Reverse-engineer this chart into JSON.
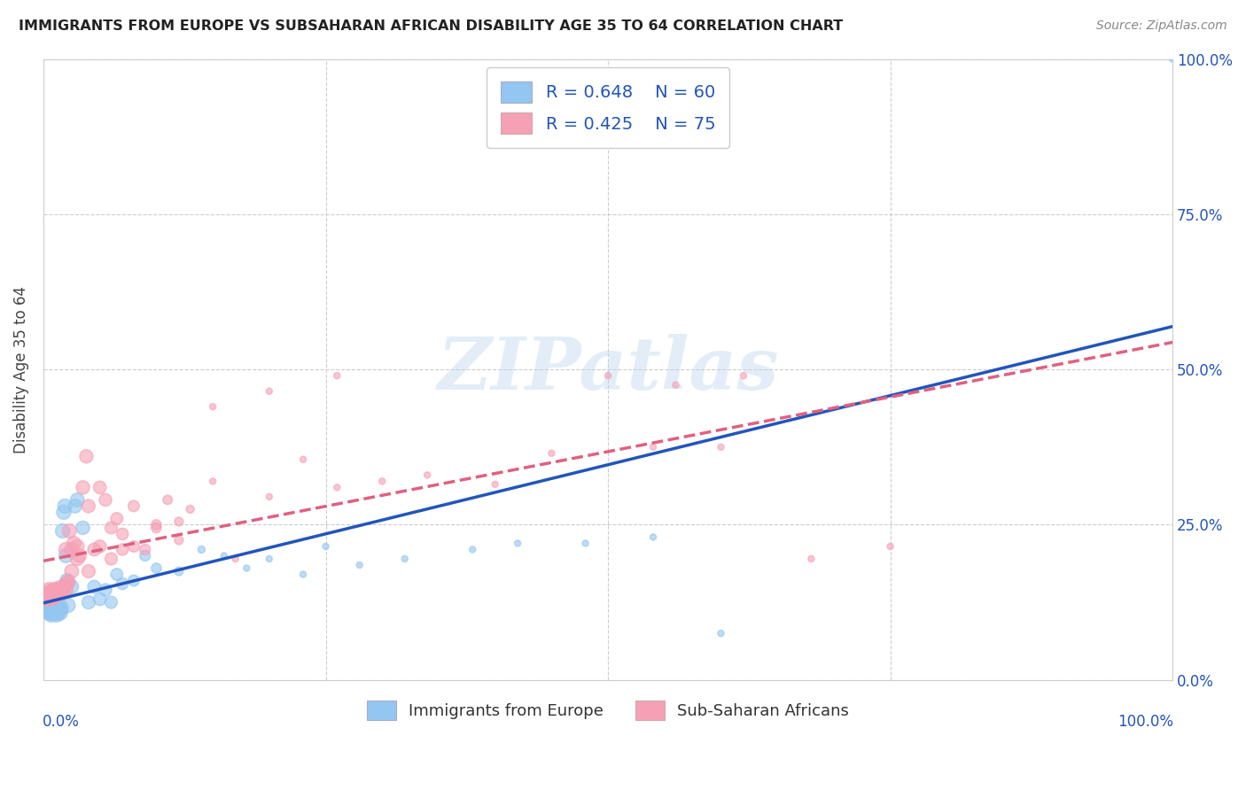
{
  "title": "IMMIGRANTS FROM EUROPE VS SUBSAHARAN AFRICAN DISABILITY AGE 35 TO 64 CORRELATION CHART",
  "source": "Source: ZipAtlas.com",
  "ylabel": "Disability Age 35 to 64",
  "xlim": [
    0,
    1
  ],
  "ylim": [
    0,
    1
  ],
  "ytick_values": [
    0,
    0.25,
    0.5,
    0.75,
    1.0
  ],
  "right_ytick_labels": [
    "0.0%",
    "25.0%",
    "50.0%",
    "75.0%",
    "100.0%"
  ],
  "right_ytick_positions": [
    0.0,
    0.25,
    0.5,
    0.75,
    1.0
  ],
  "europe_color": "#93C6F0",
  "africa_color": "#F5A0B5",
  "europe_line_color": "#2255BB",
  "africa_line_color": "#E06080",
  "background_color": "#FFFFFF",
  "grid_color": "#CCCCCC",
  "legend_text_color": "#2255BB",
  "watermark_text": "ZIPatlas",
  "europe_x": [
    0.003,
    0.004,
    0.004,
    0.005,
    0.005,
    0.006,
    0.006,
    0.007,
    0.007,
    0.008,
    0.008,
    0.009,
    0.009,
    0.01,
    0.01,
    0.011,
    0.011,
    0.012,
    0.012,
    0.013,
    0.013,
    0.014,
    0.015,
    0.015,
    0.016,
    0.017,
    0.018,
    0.019,
    0.02,
    0.021,
    0.022,
    0.025,
    0.028,
    0.03,
    0.035,
    0.04,
    0.045,
    0.05,
    0.055,
    0.06,
    0.065,
    0.07,
    0.08,
    0.09,
    0.1,
    0.12,
    0.14,
    0.16,
    0.18,
    0.2,
    0.23,
    0.25,
    0.28,
    0.32,
    0.38,
    0.42,
    0.48,
    0.54,
    0.6,
    1.0
  ],
  "europe_y": [
    0.115,
    0.12,
    0.11,
    0.125,
    0.108,
    0.118,
    0.112,
    0.115,
    0.105,
    0.12,
    0.11,
    0.115,
    0.108,
    0.118,
    0.112,
    0.116,
    0.11,
    0.12,
    0.105,
    0.115,
    0.108,
    0.112,
    0.118,
    0.108,
    0.115,
    0.24,
    0.27,
    0.28,
    0.2,
    0.16,
    0.12,
    0.15,
    0.28,
    0.29,
    0.245,
    0.125,
    0.15,
    0.13,
    0.145,
    0.125,
    0.17,
    0.155,
    0.16,
    0.2,
    0.18,
    0.175,
    0.21,
    0.2,
    0.18,
    0.195,
    0.17,
    0.215,
    0.185,
    0.195,
    0.21,
    0.22,
    0.22,
    0.23,
    0.075,
    1.0
  ],
  "africa_x": [
    0.003,
    0.004,
    0.005,
    0.005,
    0.006,
    0.007,
    0.007,
    0.008,
    0.008,
    0.009,
    0.009,
    0.01,
    0.01,
    0.011,
    0.012,
    0.012,
    0.013,
    0.014,
    0.015,
    0.016,
    0.017,
    0.018,
    0.019,
    0.02,
    0.021,
    0.022,
    0.023,
    0.025,
    0.027,
    0.03,
    0.032,
    0.035,
    0.038,
    0.04,
    0.045,
    0.05,
    0.055,
    0.06,
    0.065,
    0.07,
    0.08,
    0.09,
    0.1,
    0.11,
    0.12,
    0.13,
    0.15,
    0.17,
    0.2,
    0.23,
    0.26,
    0.3,
    0.34,
    0.4,
    0.45,
    0.5,
    0.56,
    0.62,
    0.68,
    0.75,
    0.02,
    0.025,
    0.03,
    0.04,
    0.05,
    0.06,
    0.07,
    0.08,
    0.1,
    0.12,
    0.15,
    0.2,
    0.26,
    0.54,
    0.6
  ],
  "africa_y": [
    0.13,
    0.14,
    0.135,
    0.145,
    0.138,
    0.142,
    0.135,
    0.14,
    0.132,
    0.138,
    0.145,
    0.14,
    0.135,
    0.142,
    0.138,
    0.145,
    0.14,
    0.148,
    0.142,
    0.145,
    0.14,
    0.148,
    0.152,
    0.145,
    0.155,
    0.158,
    0.24,
    0.21,
    0.22,
    0.215,
    0.2,
    0.31,
    0.36,
    0.28,
    0.21,
    0.31,
    0.29,
    0.245,
    0.26,
    0.21,
    0.28,
    0.21,
    0.25,
    0.29,
    0.255,
    0.275,
    0.32,
    0.195,
    0.295,
    0.355,
    0.31,
    0.32,
    0.33,
    0.315,
    0.365,
    0.49,
    0.475,
    0.49,
    0.195,
    0.215,
    0.21,
    0.175,
    0.195,
    0.175,
    0.215,
    0.195,
    0.235,
    0.215,
    0.245,
    0.225,
    0.44,
    0.465,
    0.49,
    0.375,
    0.375
  ]
}
